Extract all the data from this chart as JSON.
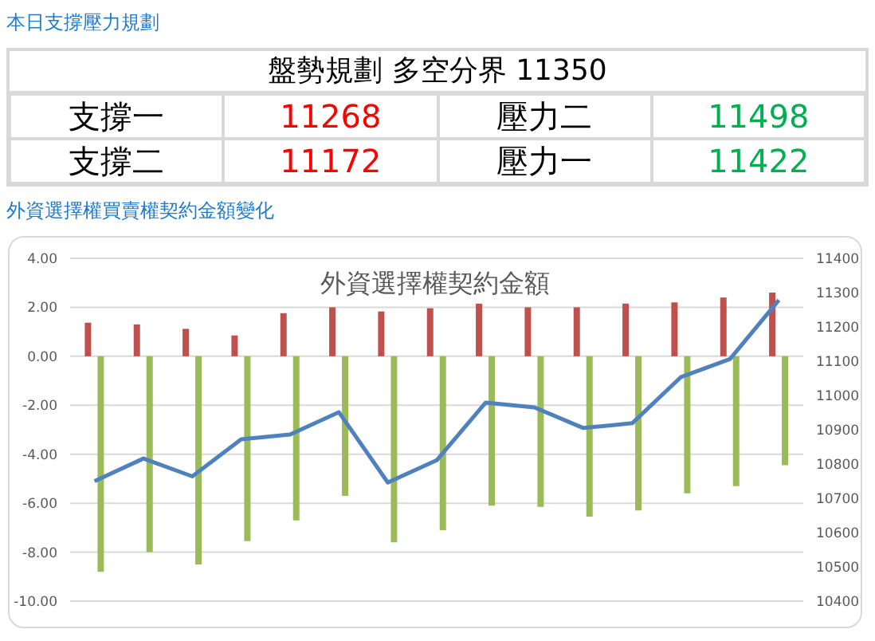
{
  "chart_data": [
    {
      "type": "other",
      "title": "本日支撐壓力規劃",
      "subtitle": "盤勢規劃 多空分界 11350",
      "categories": [
        "支撐一",
        "壓力二",
        "支撐二",
        "壓力一"
      ],
      "values": [
        11268,
        11498,
        11172,
        11422
      ],
      "colors": [
        "#ff0000",
        "#00b050",
        "#ff0000",
        "#00b050"
      ],
      "data_labels": true
    },
    {
      "type": "bar",
      "subtitle": "外資選擇權買賣權契約金額變化",
      "title": "外資選擇權契約金額",
      "categories": [
        null,
        null,
        null,
        null,
        null,
        null,
        null,
        null,
        null,
        null,
        null,
        null,
        null,
        null,
        null
      ],
      "series": [
        {
          "type": "bar",
          "color": "#c0504d",
          "values": [
            1.37,
            1.3,
            1.12,
            0.85,
            1.76,
            2.0,
            1.83,
            1.96,
            2.15,
            2.0,
            2.0,
            2.15,
            2.2,
            2.4,
            2.6
          ]
        },
        {
          "type": "bar",
          "color": "#9bbb59",
          "values": [
            -8.8,
            -8.0,
            -8.5,
            -7.55,
            -6.7,
            -5.7,
            -7.6,
            -7.1,
            -6.1,
            -6.15,
            -6.55,
            -6.3,
            -5.6,
            -5.3,
            -4.45
          ]
        },
        {
          "type": "line",
          "axis": "y2",
          "color": "#4f81bd",
          "values": [
            10750,
            10816,
            10764,
            10872,
            10886,
            10951,
            10746,
            10811,
            10979,
            10965,
            10905,
            10919,
            11054,
            11106,
            11278
          ]
        }
      ],
      "ylim": [
        -10,
        4
      ],
      "yticks": [
        {
          "value": -10,
          "label": "-10.00"
        },
        {
          "value": -8,
          "label": "-8.00"
        },
        {
          "value": -6,
          "label": "-6.00"
        },
        {
          "value": -4,
          "label": "-4.00"
        },
        {
          "value": -2,
          "label": "-2.00"
        },
        {
          "value": 0,
          "label": "0.00"
        },
        {
          "value": 2,
          "label": "2.00"
        },
        {
          "value": 4,
          "label": "4.00"
        }
      ],
      "y2lim": [
        10400,
        11400
      ],
      "y2ticks": [
        10400,
        10500,
        10600,
        10700,
        10800,
        10900,
        11000,
        11100,
        11200,
        11300,
        11400
      ],
      "grid": "y",
      "marker": "none",
      "line_style": "solid"
    }
  ]
}
